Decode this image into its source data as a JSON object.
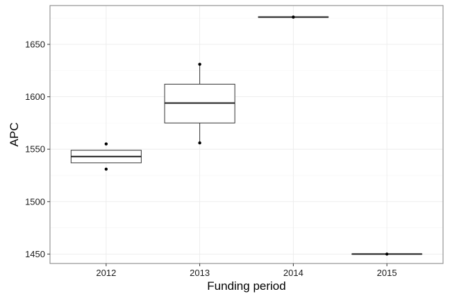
{
  "chart_data": {
    "type": "box",
    "title": "",
    "xlabel": "Funding period",
    "ylabel": "APC",
    "categories": [
      "2012",
      "2013",
      "2014",
      "2015"
    ],
    "boxes": [
      {
        "category": "2012",
        "whisker_low": 1537,
        "q1": 1537,
        "median": 1543,
        "q3": 1549,
        "whisker_high": 1549,
        "outliers": [
          1531,
          1555
        ]
      },
      {
        "category": "2013",
        "whisker_low": 1556,
        "q1": 1575,
        "median": 1594,
        "q3": 1612,
        "whisker_high": 1631,
        "outliers": [
          1556,
          1631
        ]
      },
      {
        "category": "2014",
        "whisker_low": 1676,
        "q1": 1676,
        "median": 1676,
        "q3": 1676,
        "whisker_high": 1676,
        "outliers": [
          1676
        ]
      },
      {
        "category": "2015",
        "whisker_low": 1450,
        "q1": 1450,
        "median": 1450,
        "q3": 1450,
        "whisker_high": 1450,
        "outliers": [
          1450
        ]
      }
    ],
    "y_ticks": [
      1450,
      1500,
      1550,
      1600,
      1650
    ],
    "ylim": [
      1441,
      1687
    ],
    "grid": true,
    "legend": "none",
    "colors": {
      "box_fill": "#ffffff",
      "box_stroke": "#333333",
      "median": "#1a1a1a",
      "point": "#000000",
      "grid_major": "#ebebeb",
      "grid_minor": "#f5f5f5",
      "panel_border": "#7f7f7f"
    }
  }
}
